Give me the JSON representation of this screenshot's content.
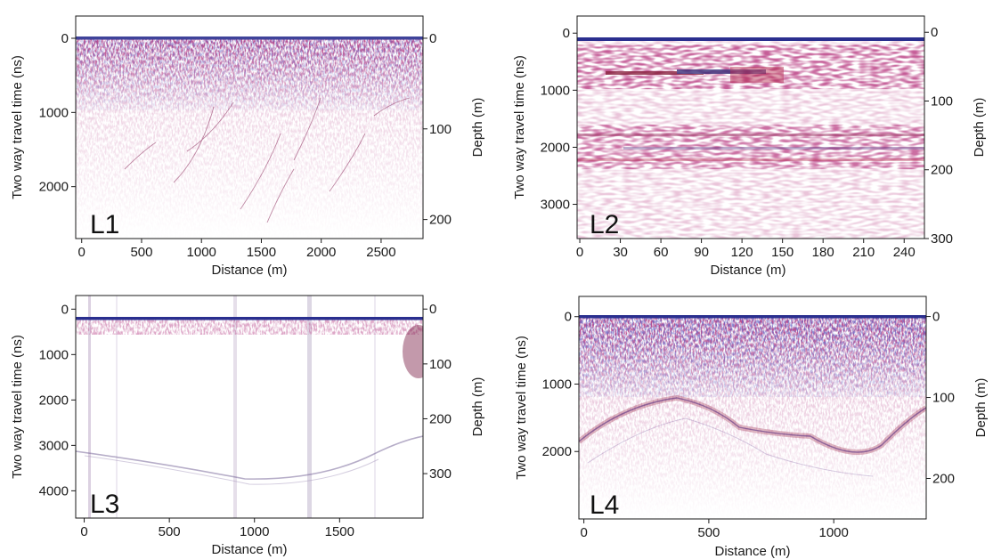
{
  "chart_data": [
    {
      "type": "heatmap",
      "panel_label": "L1",
      "xlabel": "Distance (m)",
      "ylabel": "Two way travel time (ns)",
      "y2label": "Depth (m)",
      "xlim": [
        -50,
        2850
      ],
      "ylim": [
        2700,
        -300
      ],
      "y2lim": [
        221,
        -24.5
      ],
      "xticks": [
        0,
        500,
        1000,
        1500,
        2000,
        2500
      ],
      "yticks": [
        0,
        1000,
        2000
      ],
      "y2ticks": [
        0,
        100,
        200
      ],
      "signal": "noisy near-surface band 0-600 ns with faint diffraction hyperbolas to 2500 ns"
    },
    {
      "type": "heatmap",
      "panel_label": "L2",
      "xlabel": "Distance (m)",
      "ylabel": "Two way travel time (ns)",
      "y2label": "Depth (m)",
      "xlim": [
        -2,
        255
      ],
      "ylim": [
        3600,
        -300
      ],
      "y2lim": [
        300,
        -23.6
      ],
      "xticks": [
        0,
        30,
        60,
        90,
        120,
        150,
        180,
        210,
        240
      ],
      "yticks": [
        0,
        1000,
        2000,
        3000
      ],
      "y2ticks": [
        0,
        100,
        200,
        300
      ],
      "signal": "coarse layered reflectors near 600 ns and 1800-2100 ns"
    },
    {
      "type": "heatmap",
      "panel_label": "L3",
      "xlabel": "Distance (m)",
      "ylabel": "Two way travel time (ns)",
      "y2label": "Depth (m)",
      "xlim": [
        -50,
        1990
      ],
      "ylim": [
        4600,
        -300
      ],
      "y2lim": [
        381,
        -24.7
      ],
      "xticks": [
        0,
        500,
        1000,
        1500
      ],
      "yticks": [
        0,
        1000,
        2000,
        3000,
        4000
      ],
      "y2ticks": [
        0,
        100,
        200,
        300
      ],
      "signal": "faint bedrock reflector curving from about 2900 ns to 3650 ns and back to 2700 ns"
    },
    {
      "type": "heatmap",
      "panel_label": "L4",
      "xlabel": "Distance (m)",
      "ylabel": "Two way travel time (ns)",
      "y2label": "Depth (m)",
      "xlim": [
        -20,
        1370
      ],
      "ylim": [
        3000,
        -300
      ],
      "y2lim": [
        250,
        -24.8
      ],
      "xticks": [
        0,
        500,
        1000
      ],
      "yticks": [
        0,
        1000,
        2000
      ],
      "y2ticks": [
        0,
        100,
        200
      ],
      "signal": "dense surface clutter 0-1000 ns over a domed reflector near 1200-2000 ns"
    }
  ],
  "colors": {
    "positive": "#b01735",
    "negative": "#2a2f8f",
    "background": "#ffffff",
    "axis": "#1a1a1a"
  }
}
